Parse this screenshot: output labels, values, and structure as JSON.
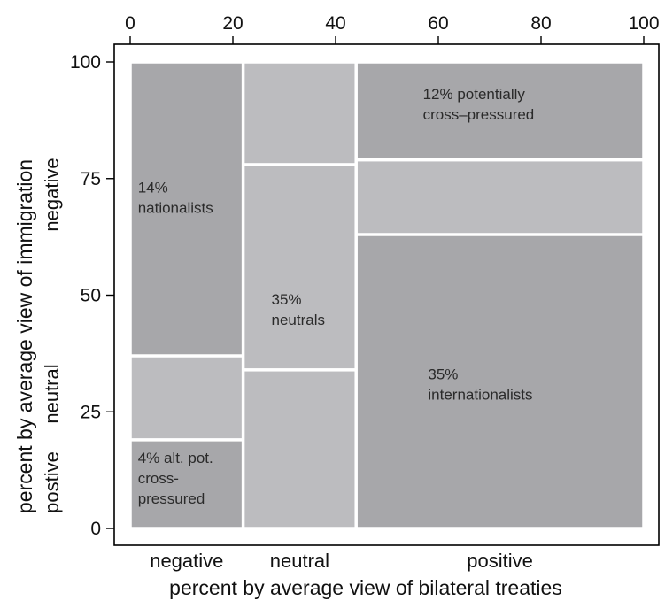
{
  "chart_data": {
    "type": "mosaic",
    "x_axis": {
      "title": "percent by average view of bilateral treaties",
      "range": [
        0,
        100
      ],
      "top_ticks": [
        0,
        20,
        40,
        60,
        80,
        100
      ],
      "categories": [
        "negative",
        "neutral",
        "positive"
      ]
    },
    "y_axis": {
      "title": "percent by average view of immigration",
      "range": [
        0,
        100
      ],
      "ticks": [
        0,
        25,
        50,
        75,
        100
      ],
      "categories": [
        "postive",
        "neutral",
        "negative"
      ]
    },
    "columns": [
      {
        "name": "negative",
        "x_range": [
          0,
          22
        ],
        "segments": [
          {
            "name": "postive",
            "y_range": [
              0,
              19
            ],
            "shade": "dark"
          },
          {
            "name": "neutral",
            "y_range": [
              19,
              37
            ],
            "shade": "light"
          },
          {
            "name": "negative",
            "y_range": [
              37,
              100
            ],
            "shade": "dark"
          }
        ]
      },
      {
        "name": "neutral",
        "x_range": [
          22,
          44
        ],
        "segments": [
          {
            "name": "postive",
            "y_range": [
              0,
              34
            ],
            "shade": "light"
          },
          {
            "name": "neutral",
            "y_range": [
              34,
              78
            ],
            "shade": "light"
          },
          {
            "name": "negative",
            "y_range": [
              78,
              100
            ],
            "shade": "light"
          }
        ]
      },
      {
        "name": "positive",
        "x_range": [
          44,
          100
        ],
        "segments": [
          {
            "name": "postive",
            "y_range": [
              0,
              63
            ],
            "shade": "dark"
          },
          {
            "name": "neutral",
            "y_range": [
              63,
              79
            ],
            "shade": "light"
          },
          {
            "name": "negative",
            "y_range": [
              79,
              100
            ],
            "shade": "dark"
          }
        ]
      }
    ],
    "annotations": [
      {
        "lines": [
          "14%",
          "nationalists"
        ],
        "x": 1.5,
        "y": 72
      },
      {
        "lines": [
          "12% potentially",
          "cross–pressured"
        ],
        "x": 57,
        "y": 92
      },
      {
        "lines": [
          "35%",
          "neutrals"
        ],
        "x": 27.5,
        "y": 48
      },
      {
        "lines": [
          "35%",
          "internationalists"
        ],
        "x": 58,
        "y": 32
      },
      {
        "lines": [
          "4% alt. pot.",
          "cross-",
          "pressured"
        ],
        "x": 1.5,
        "y": 14
      }
    ],
    "grid": false,
    "legend": "none",
    "colors": {
      "dark": "#a7a7aa",
      "light": "#bcbcbf",
      "border": "#ffffff",
      "frame": "#000000"
    }
  }
}
